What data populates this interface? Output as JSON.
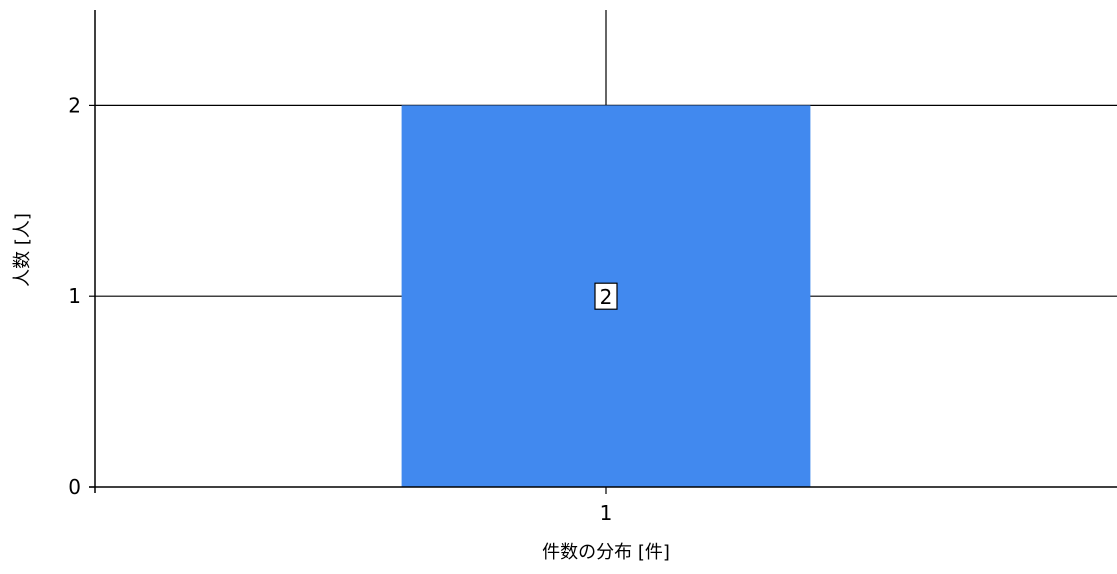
{
  "chart_data": {
    "type": "bar",
    "categories": [
      "1"
    ],
    "values": [
      2
    ],
    "data_labels": [
      "2"
    ],
    "xlabel": "件数の分布 [件]",
    "ylabel": "人数 [人]",
    "y_ticks": [
      "0",
      "1",
      "2"
    ],
    "ylim": [
      0,
      2.5
    ],
    "x_range": [
      0,
      2
    ],
    "grid": true,
    "bar_color": "#4189ef",
    "grid_color": "#000000",
    "axis_color": "#000000"
  }
}
